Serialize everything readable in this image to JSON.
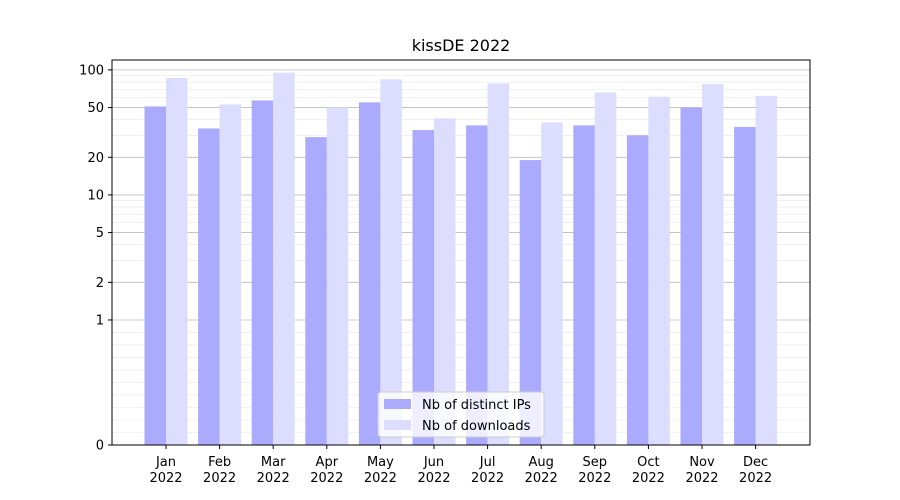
{
  "chart_data": {
    "type": "bar",
    "title": "kissDE 2022",
    "xlabel": "",
    "ylabel": "",
    "yscale": "symlog",
    "ylim": [
      0,
      120
    ],
    "yticks": [
      0,
      1,
      2,
      5,
      10,
      20,
      50,
      100
    ],
    "categories": [
      "Jan",
      "Feb",
      "Mar",
      "Apr",
      "May",
      "Jun",
      "Jul",
      "Aug",
      "Sep",
      "Oct",
      "Nov",
      "Dec"
    ],
    "category_year": "2022",
    "series": [
      {
        "name": "Nb of distinct IPs",
        "color": "#aaaaff",
        "values": [
          51,
          34,
          57,
          29,
          55,
          33,
          36,
          19,
          36,
          30,
          50,
          35
        ]
      },
      {
        "name": "Nb of downloads",
        "color": "#ddddff",
        "values": [
          86,
          53,
          95,
          50,
          84,
          41,
          78,
          38,
          66,
          61,
          77,
          62
        ]
      }
    ],
    "grid": true,
    "legend_position": "bottom-center"
  }
}
